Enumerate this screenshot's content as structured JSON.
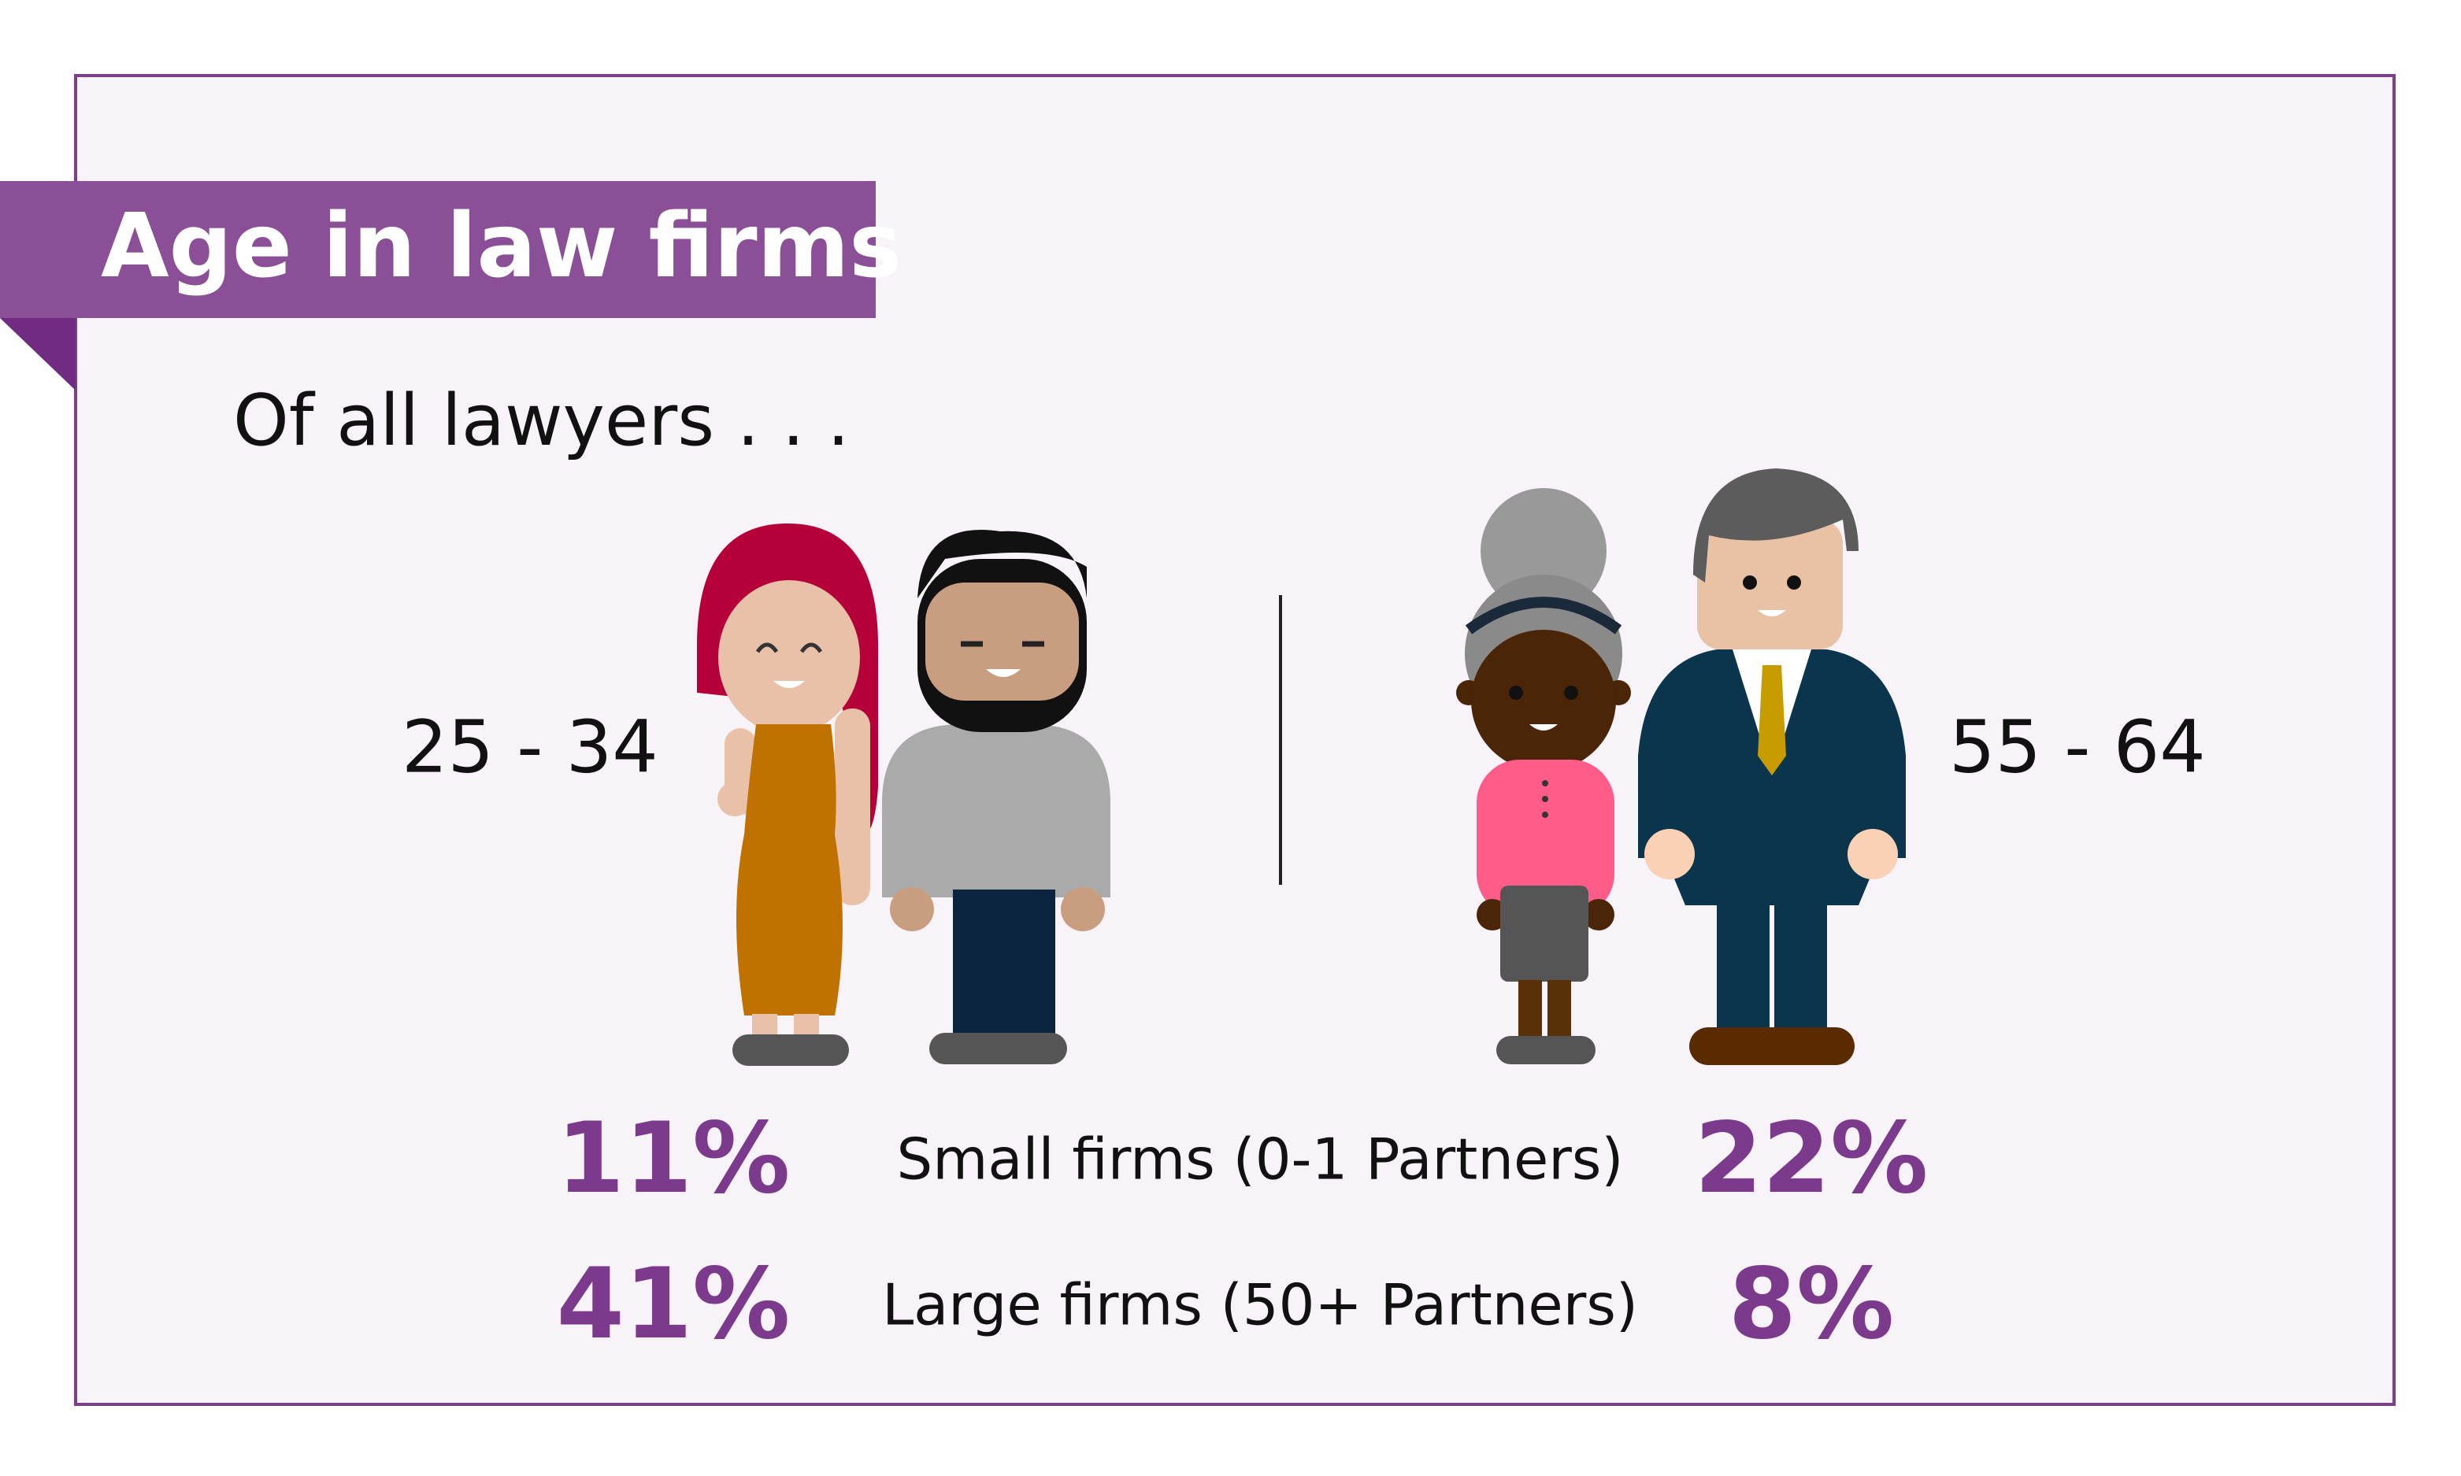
{
  "title": "Age in law firms",
  "subtitle": "Of all lawyers . . .",
  "groups": [
    {
      "label": "25 - 34"
    },
    {
      "label": "55 - 64"
    }
  ],
  "rows": [
    {
      "label": "Small firms (0-1 Partners)",
      "values": [
        "11%",
        "22%"
      ]
    },
    {
      "label": "Large firms (50+ Partners)",
      "values": [
        "41%",
        "8%"
      ]
    }
  ]
}
